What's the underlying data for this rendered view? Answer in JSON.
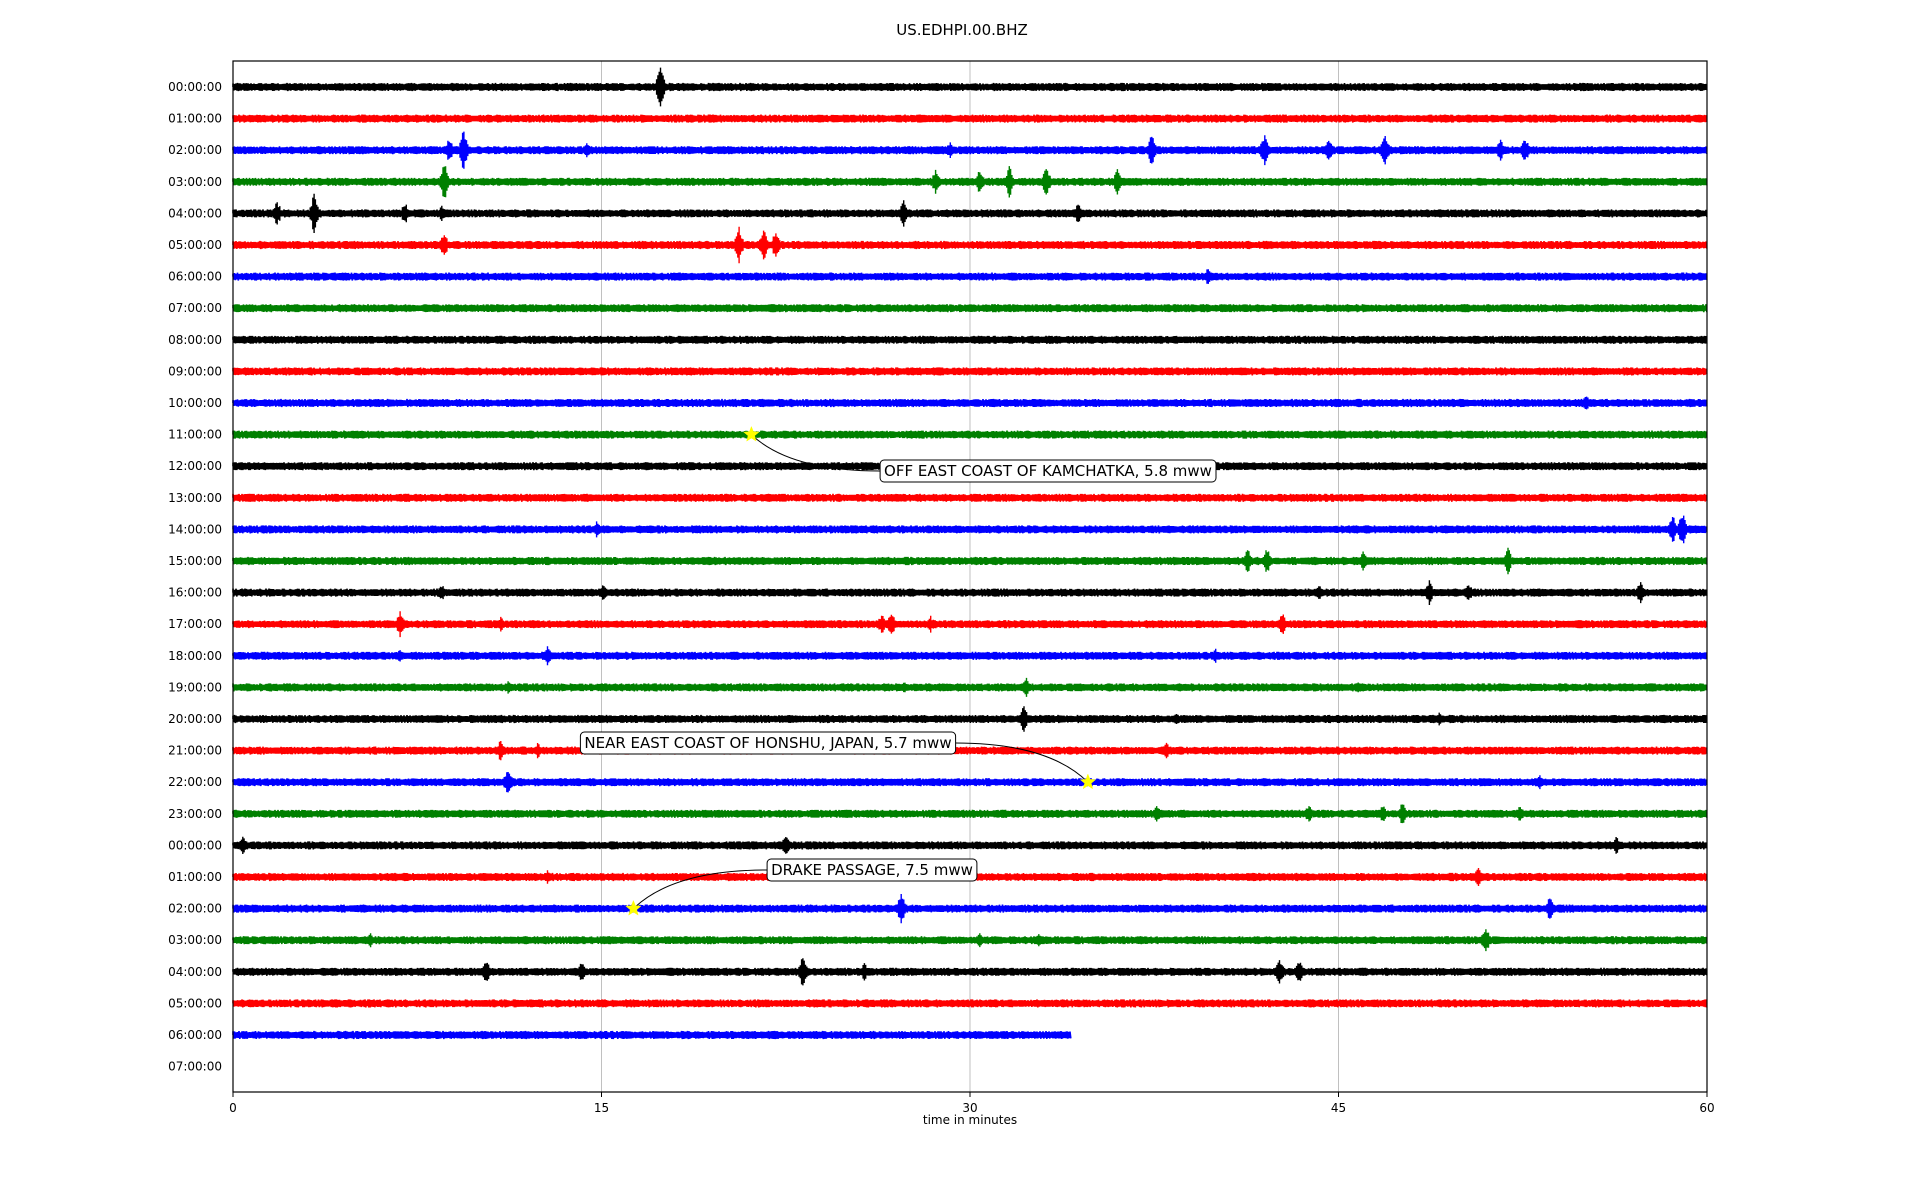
{
  "chart_data": {
    "type": "line",
    "title": "US.EDHPI.00.BHZ",
    "xlabel": "time in minutes",
    "ylabel": "",
    "xlim": [
      0,
      60
    ],
    "x_ticks": [
      0,
      15,
      30,
      45,
      60
    ],
    "grid_x": true,
    "trace_colors": [
      "#000000",
      "#ff0000",
      "#0000ff",
      "#008000"
    ],
    "rows": [
      {
        "label": "00:00:00",
        "end_minute": 60,
        "events": [
          [
            17.4,
            4.0
          ]
        ]
      },
      {
        "label": "01:00:00",
        "end_minute": 60,
        "events": []
      },
      {
        "label": "02:00:00",
        "end_minute": 60,
        "events": [
          [
            8.8,
            2.2
          ],
          [
            9.4,
            3.8
          ],
          [
            14.4,
            1.3
          ],
          [
            29.2,
            1.4
          ],
          [
            37.4,
            2.8
          ],
          [
            42.0,
            3.2
          ],
          [
            44.6,
            2.2
          ],
          [
            46.9,
            3.0
          ],
          [
            51.6,
            2.0
          ],
          [
            52.6,
            2.2
          ]
        ]
      },
      {
        "label": "03:00:00",
        "end_minute": 60,
        "events": [
          [
            8.6,
            3.8
          ],
          [
            28.6,
            2.2
          ],
          [
            30.4,
            2.4
          ],
          [
            31.6,
            2.8
          ],
          [
            33.1,
            3.0
          ],
          [
            36.0,
            2.2
          ]
        ]
      },
      {
        "label": "04:00:00",
        "end_minute": 60,
        "events": [
          [
            1.8,
            2.2
          ],
          [
            3.3,
            3.4
          ],
          [
            7.0,
            2.0
          ],
          [
            8.5,
            1.4
          ],
          [
            27.3,
            2.4
          ],
          [
            34.4,
            2.0
          ]
        ]
      },
      {
        "label": "05:00:00",
        "end_minute": 60,
        "events": [
          [
            8.6,
            2.4
          ],
          [
            20.6,
            3.2
          ],
          [
            21.6,
            3.0
          ],
          [
            22.1,
            2.6
          ]
        ]
      },
      {
        "label": "06:00:00",
        "end_minute": 60,
        "events": [
          [
            39.7,
            1.6
          ]
        ]
      },
      {
        "label": "07:00:00",
        "end_minute": 60,
        "events": []
      },
      {
        "label": "08:00:00",
        "end_minute": 60,
        "events": []
      },
      {
        "label": "09:00:00",
        "end_minute": 60,
        "events": []
      },
      {
        "label": "10:00:00",
        "end_minute": 60,
        "events": [
          [
            55.1,
            1.4
          ]
        ]
      },
      {
        "label": "11:00:00",
        "end_minute": 60,
        "events": []
      },
      {
        "label": "12:00:00",
        "end_minute": 60,
        "events": []
      },
      {
        "label": "13:00:00",
        "end_minute": 60,
        "events": []
      },
      {
        "label": "14:00:00",
        "end_minute": 60,
        "events": [
          [
            14.8,
            1.4
          ],
          [
            58.6,
            2.6
          ],
          [
            59.0,
            3.0
          ]
        ]
      },
      {
        "label": "15:00:00",
        "end_minute": 60,
        "events": [
          [
            41.3,
            2.4
          ],
          [
            42.1,
            2.4
          ],
          [
            46.0,
            1.8
          ],
          [
            51.9,
            2.4
          ]
        ]
      },
      {
        "label": "16:00:00",
        "end_minute": 60,
        "events": [
          [
            8.5,
            1.4
          ],
          [
            15.1,
            1.6
          ],
          [
            44.2,
            1.6
          ],
          [
            48.7,
            2.2
          ],
          [
            50.3,
            1.6
          ],
          [
            57.3,
            2.2
          ]
        ]
      },
      {
        "label": "17:00:00",
        "end_minute": 60,
        "events": [
          [
            6.8,
            2.4
          ],
          [
            10.9,
            1.4
          ],
          [
            26.4,
            1.8
          ],
          [
            26.8,
            2.2
          ],
          [
            28.4,
            1.4
          ],
          [
            42.7,
            2.2
          ]
        ]
      },
      {
        "label": "18:00:00",
        "end_minute": 60,
        "events": [
          [
            6.8,
            1.4
          ],
          [
            12.8,
            1.6
          ],
          [
            40.0,
            1.2
          ]
        ]
      },
      {
        "label": "19:00:00",
        "end_minute": 60,
        "events": [
          [
            11.2,
            1.2
          ],
          [
            27.3,
            1.2
          ],
          [
            32.3,
            1.8
          ],
          [
            45.8,
            1.2
          ]
        ]
      },
      {
        "label": "20:00:00",
        "end_minute": 60,
        "events": [
          [
            32.2,
            2.4
          ],
          [
            38.4,
            1.2
          ],
          [
            49.1,
            1.2
          ]
        ]
      },
      {
        "label": "21:00:00",
        "end_minute": 60,
        "events": [
          [
            10.9,
            2.0
          ],
          [
            12.4,
            1.4
          ],
          [
            38.0,
            1.4
          ]
        ]
      },
      {
        "label": "22:00:00",
        "end_minute": 60,
        "events": [
          [
            11.2,
            2.6
          ],
          [
            53.2,
            1.2
          ]
        ]
      },
      {
        "label": "23:00:00",
        "end_minute": 60,
        "events": [
          [
            37.6,
            1.6
          ],
          [
            43.8,
            1.6
          ],
          [
            46.8,
            1.6
          ],
          [
            47.6,
            2.0
          ],
          [
            52.4,
            1.6
          ]
        ]
      },
      {
        "label": "00:00:00",
        "end_minute": 60,
        "events": [
          [
            0.4,
            1.6
          ],
          [
            22.5,
            2.2
          ],
          [
            56.3,
            1.6
          ]
        ]
      },
      {
        "label": "01:00:00",
        "end_minute": 60,
        "events": [
          [
            12.8,
            1.2
          ],
          [
            50.7,
            1.8
          ]
        ]
      },
      {
        "label": "02:00:00",
        "end_minute": 60,
        "events": [
          [
            27.2,
            2.8
          ],
          [
            53.6,
            2.0
          ]
        ]
      },
      {
        "label": "03:00:00",
        "end_minute": 60,
        "events": [
          [
            5.6,
            1.2
          ],
          [
            30.4,
            1.4
          ],
          [
            32.8,
            1.4
          ],
          [
            51.0,
            2.6
          ]
        ]
      },
      {
        "label": "04:00:00",
        "end_minute": 60,
        "events": [
          [
            10.3,
            2.2
          ],
          [
            14.2,
            1.8
          ],
          [
            23.2,
            2.8
          ],
          [
            25.7,
            1.6
          ],
          [
            42.6,
            2.6
          ],
          [
            43.4,
            2.0
          ]
        ]
      },
      {
        "label": "05:00:00",
        "end_minute": 60,
        "events": []
      },
      {
        "label": "06:00:00",
        "end_minute": 34.1,
        "events": []
      },
      {
        "label": "07:00:00",
        "end_minute": 0,
        "events": []
      }
    ],
    "earthquakes": [
      {
        "label": "OFF EAST COAST OF KAMCHATKA, 5.8 mww",
        "row": 11,
        "minute": 21.1
      },
      {
        "label": "NEAR EAST COAST OF HONSHU, JAPAN, 5.7 mww",
        "row": 22,
        "minute": 34.8
      },
      {
        "label": "DRAKE PASSAGE, 7.5 mww",
        "row": 26,
        "minute": 16.3
      }
    ],
    "marker_color": "#ffff00"
  }
}
